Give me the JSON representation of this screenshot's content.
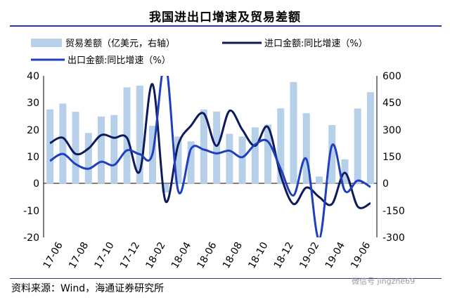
{
  "title": "我国进出口增速及贸易差额",
  "source": "资料来源：Wind，海通证券研究所",
  "watermark": "微信号 jingzhe69",
  "chart_data": {
    "type": "bar+line",
    "x": [
      "17-05",
      "17-06",
      "17-07",
      "17-08",
      "17-09",
      "17-10",
      "17-11",
      "17-12",
      "18-01",
      "18-02",
      "18-03",
      "18-04",
      "18-05",
      "18-06",
      "18-07",
      "18-08",
      "18-09",
      "18-10",
      "18-11",
      "18-12",
      "19-01",
      "19-02",
      "19-03",
      "19-04",
      "19-05",
      "19-06"
    ],
    "x_tick_labels": [
      "17-06",
      "17-08",
      "17-10",
      "17-12",
      "18-02",
      "18-04",
      "18-06",
      "18-08",
      "18-10",
      "18-12",
      "19-02",
      "19-04",
      "19-06"
    ],
    "y_left": {
      "min": -20,
      "max": 40,
      "ticks": [
        -20,
        -10,
        0,
        10,
        20,
        30,
        40
      ]
    },
    "y_right": {
      "min": -300,
      "max": 600,
      "ticks": [
        -300,
        -150,
        0,
        150,
        300,
        450,
        600
      ]
    },
    "legend": [
      "贸易差额（亿美元，右轴）",
      "进口金额:同比增速（%）",
      "出口金额:同比增速（%）"
    ],
    "series": [
      {
        "name": "贸易差额（亿美元，右轴）",
        "axis": "right",
        "kind": "bar",
        "color": "#b7d0ea",
        "values": [
          413,
          446,
          400,
          282,
          373,
          382,
          536,
          546,
          322,
          -50,
          262,
          235,
          413,
          401,
          277,
          262,
          313,
          329,
          419,
          566,
          392,
          39,
          326,
          135,
          418,
          509
        ]
      },
      {
        "name": "进口金额:同比增速（%）",
        "axis": "left",
        "kind": "line",
        "color": "#0d1a5c",
        "values": [
          15,
          17,
          11,
          13,
          18,
          17,
          17,
          4.5,
          36.9,
          -6.4,
          14.4,
          21.5,
          26,
          14,
          27,
          20,
          14,
          21,
          3,
          -7.6,
          -1.5,
          -5,
          -7.6,
          4,
          -8.5,
          -7.3
        ]
      },
      {
        "name": "出口金额:同比增速（%）",
        "axis": "left",
        "kind": "line",
        "color": "#1f3fbf",
        "values": [
          8.4,
          11,
          7.2,
          5.5,
          8.1,
          6.9,
          12.3,
          10.9,
          11.1,
          44.5,
          -2.7,
          12.9,
          12.6,
          11.2,
          12.2,
          9.8,
          14.5,
          15.6,
          5.4,
          -4.4,
          9.1,
          -20.7,
          14.2,
          -2.7,
          1.1,
          -1.3
        ]
      }
    ]
  }
}
